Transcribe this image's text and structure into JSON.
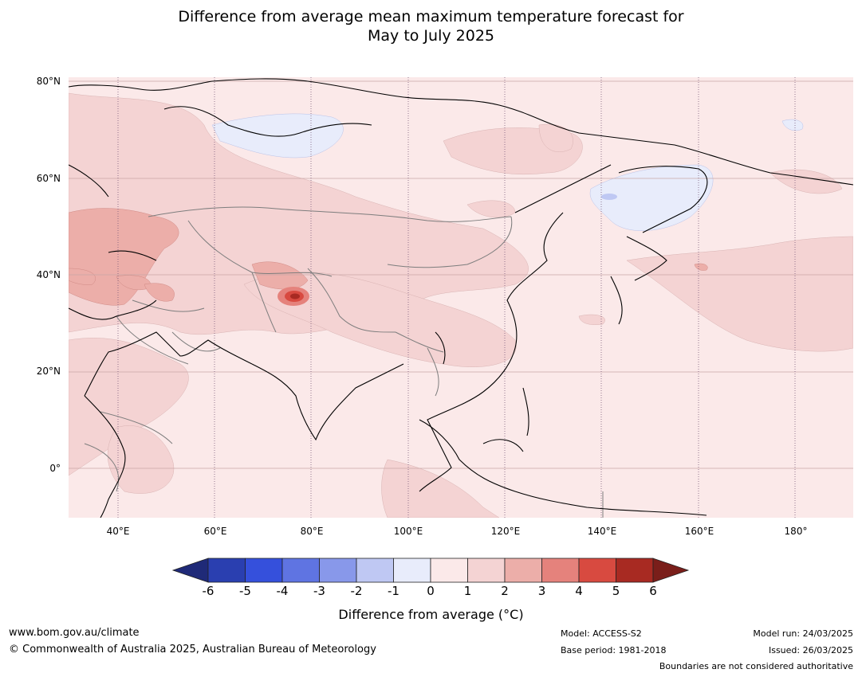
{
  "title": {
    "line1": "Difference from average mean maximum temperature forecast for",
    "line2": "May to July 2025"
  },
  "axes": {
    "lat_labels": [
      "80°N",
      "60°N",
      "40°N",
      "20°N",
      "0°"
    ],
    "lon_labels": [
      "40°E",
      "60°E",
      "80°E",
      "100°E",
      "120°E",
      "140°E",
      "160°E",
      "180°"
    ]
  },
  "colorbar": {
    "ticks": [
      "-6",
      "-5",
      "-4",
      "-3",
      "-2",
      "-1",
      "0",
      "1",
      "2",
      "3",
      "4",
      "5",
      "6"
    ],
    "colors": [
      "#1f2a78",
      "#2a3fb0",
      "#3550dc",
      "#5f74e2",
      "#8898ea",
      "#bfc8f3",
      "#e8ecfb",
      "#fbe9e9",
      "#f4d3d3",
      "#ecaea9",
      "#e5827c",
      "#d84a40",
      "#a82a22",
      "#7a1e1a"
    ],
    "label": "Difference from average (°C)"
  },
  "footer": {
    "website": "www.bom.gov.au/climate",
    "copyright": "© Commonwealth of Australia 2025, Australian Bureau of Meteorology",
    "model": "Model: ACCESS-S2",
    "base_period": "Base period: 1981-2018",
    "model_run": "Model run: 24/03/2025",
    "issued": "Issued: 26/03/2025",
    "disclaimer": "Boundaries are not considered authoritative"
  }
}
